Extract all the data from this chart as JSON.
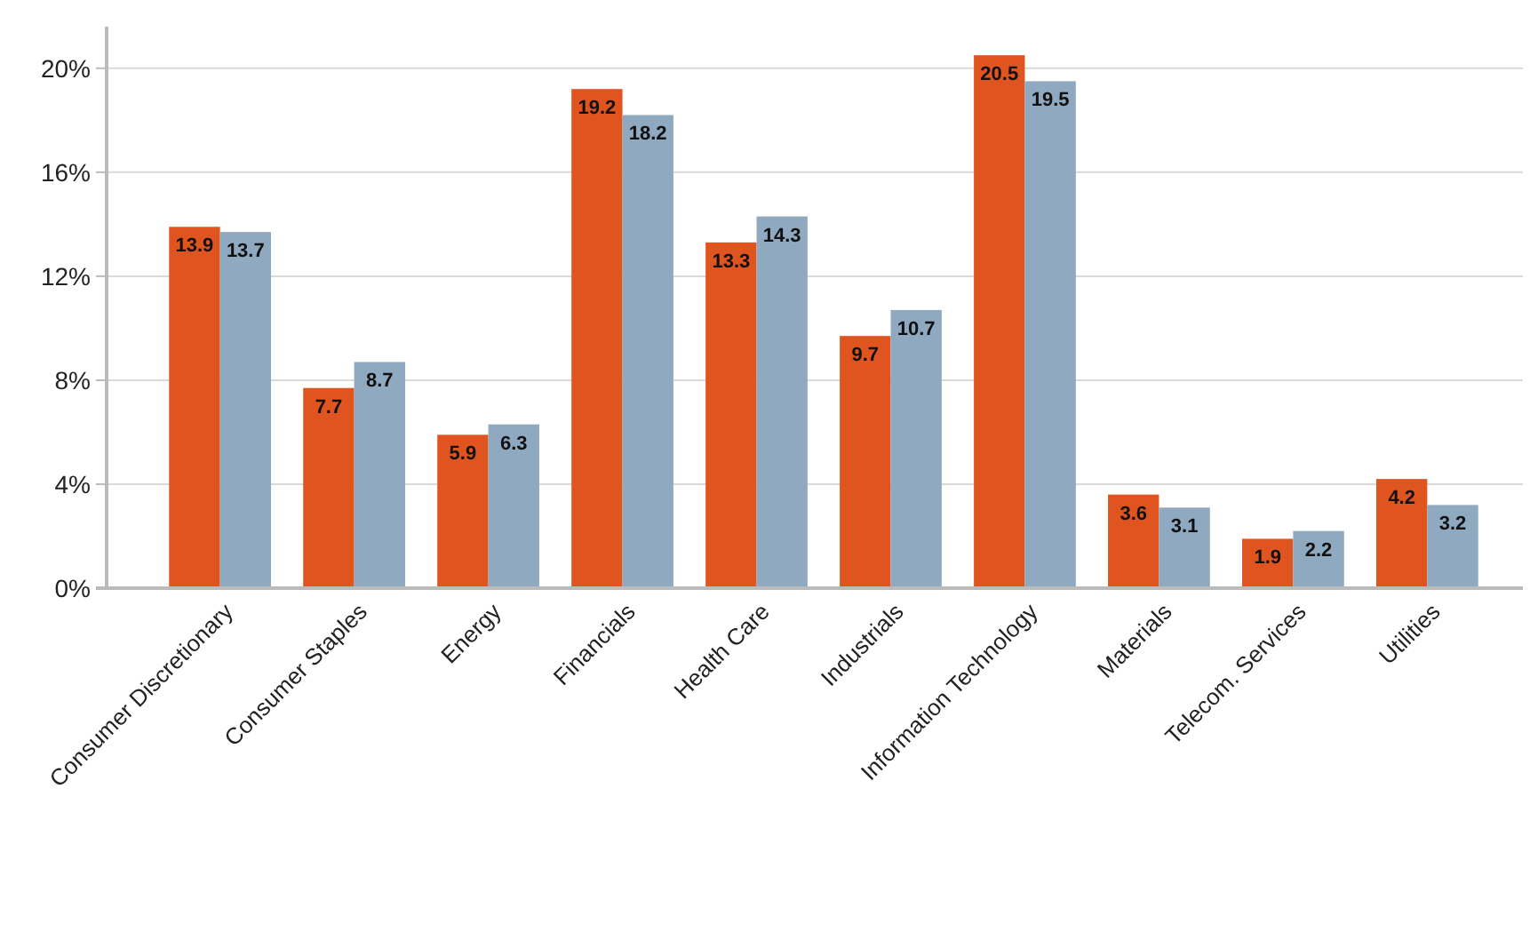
{
  "chart_data": {
    "type": "bar",
    "categories": [
      "Consumer Discretionary",
      "Consumer Staples",
      "Energy",
      "Financials",
      "Health Care",
      "Industrials",
      "Information Technology",
      "Materials",
      "Telecom. Services",
      "Utilities"
    ],
    "series": [
      {
        "color": "#e0541f",
        "values": [
          13.9,
          7.7,
          5.9,
          19.2,
          13.3,
          9.7,
          20.5,
          3.6,
          1.9,
          4.2
        ]
      },
      {
        "color": "#8fa9c1",
        "values": [
          13.7,
          8.7,
          6.3,
          18.2,
          14.3,
          10.7,
          19.5,
          3.1,
          2.2,
          3.2
        ]
      }
    ],
    "ylim": [
      0,
      21.6
    ],
    "yticks": [
      {
        "value": 0,
        "label": "0%"
      },
      {
        "value": 4,
        "label": "4%"
      },
      {
        "value": 8,
        "label": "8%"
      },
      {
        "value": 12,
        "label": "12%"
      },
      {
        "value": 16,
        "label": "16%"
      },
      {
        "value": 20,
        "label": "20%"
      }
    ],
    "grid": "y",
    "data_labels": true
  }
}
